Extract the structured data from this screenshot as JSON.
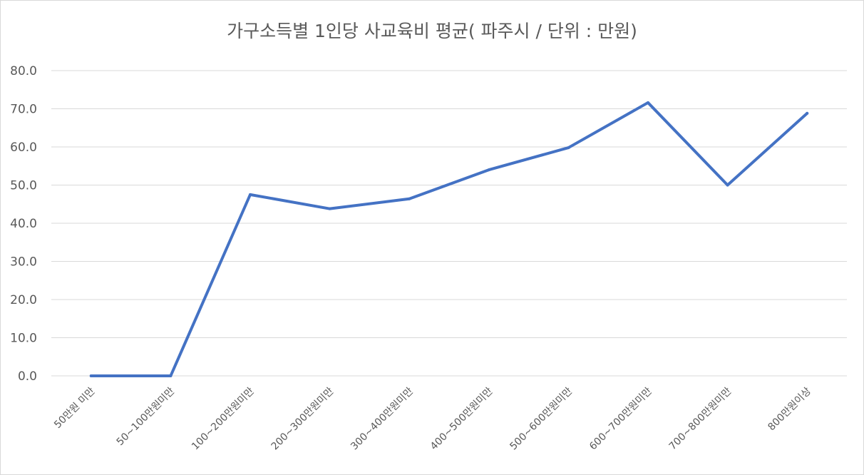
{
  "chart_data": {
    "type": "line",
    "title": "가구소득별 1인당 사교육비 평균( 파주시 / 단위 : 만원)",
    "xlabel": "",
    "ylabel": "",
    "categories": [
      "50만원 미만",
      "50~100만원미만",
      "100~200만원미만",
      "200~300만원미만",
      "300~400만원미만",
      "400~500만원미만",
      "500~600만원미만",
      "600~700만원미만",
      "700~800만원미만",
      "800만원이상"
    ],
    "series": [
      {
        "values": [
          0.0,
          0.0,
          47.5,
          43.8,
          46.4,
          54.0,
          59.8,
          71.6,
          50.0,
          68.8
        ]
      }
    ],
    "ylim": [
      0,
      80
    ],
    "yticks": [
      "0.0",
      "10.0",
      "20.0",
      "30.0",
      "40.0",
      "50.0",
      "60.0",
      "70.0",
      "80.0"
    ],
    "grid": true,
    "legend": "none",
    "colors": {
      "line": "#4472c4",
      "grid": "#d9d9d9",
      "text": "#595959"
    }
  }
}
